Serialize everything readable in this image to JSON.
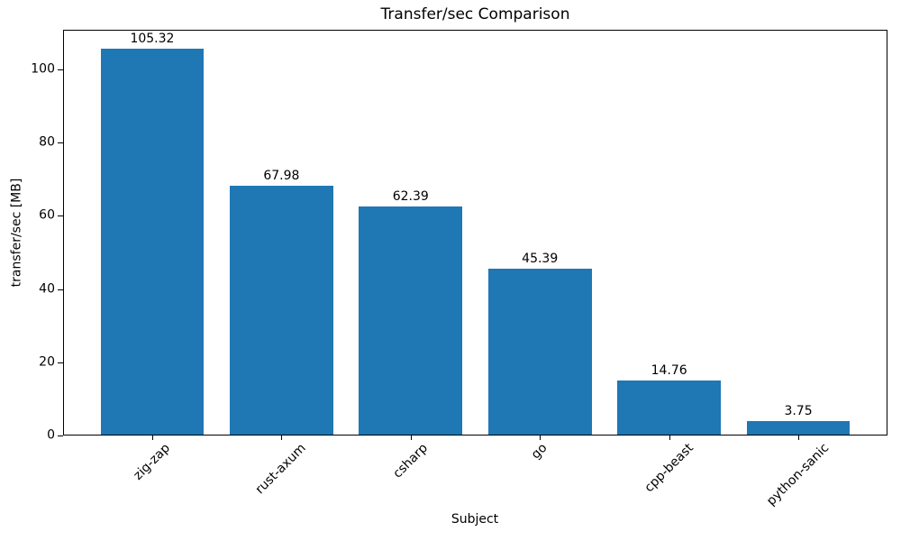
{
  "chart_data": {
    "type": "bar",
    "title": "Transfer/sec Comparison",
    "xlabel": "Subject",
    "ylabel": "transfer/sec [MB]",
    "categories": [
      "zig-zap",
      "rust-axum",
      "csharp",
      "go",
      "cpp-beast",
      "python-sanic"
    ],
    "values": [
      105.32,
      67.98,
      62.39,
      45.39,
      14.76,
      3.75
    ],
    "value_labels": [
      "105.32",
      "67.98",
      "62.39",
      "45.39",
      "14.76",
      "3.75"
    ],
    "bar_color": "#1f77b4",
    "axis_color": "#000000",
    "text_color": "#000000",
    "ylim": [
      0,
      110.8
    ],
    "yticks": [
      0,
      20,
      40,
      60,
      80,
      100
    ],
    "x_tick_rotation_deg": 45,
    "grid": false,
    "legend_visible": false
  }
}
